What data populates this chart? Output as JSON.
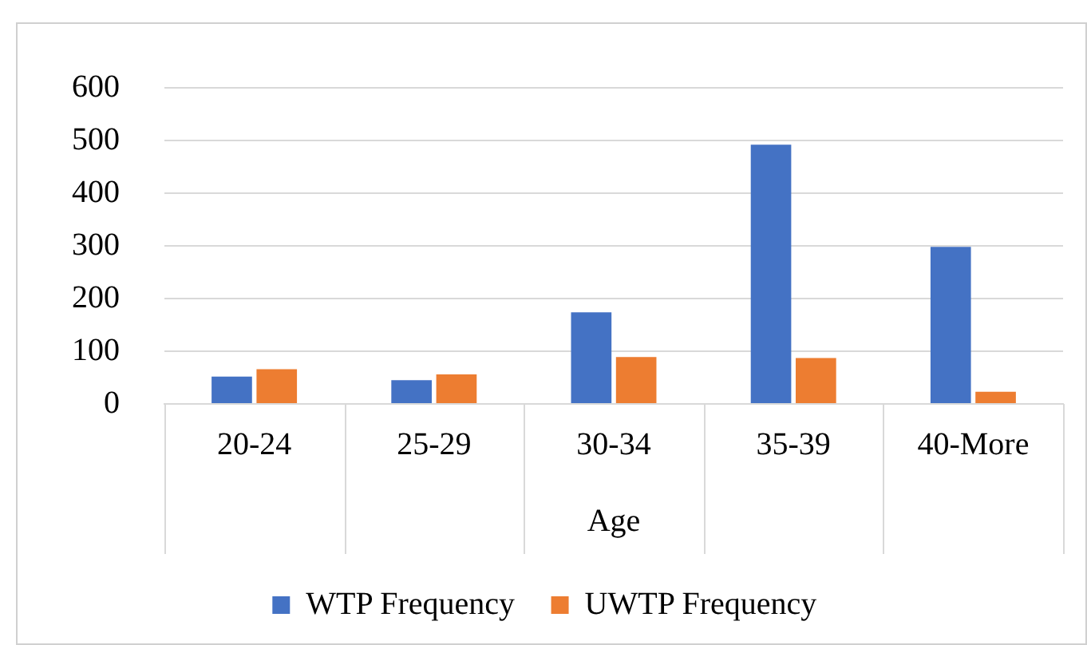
{
  "chart_data": {
    "type": "bar",
    "xlabel": "Age",
    "categories": [
      "20-24",
      "25-29",
      "30-34",
      "35-39",
      "40-More"
    ],
    "series": [
      {
        "name": "WTP Frequency",
        "color": "#4472c4",
        "values": [
          52,
          45,
          174,
          492,
          298
        ]
      },
      {
        "name": "UWTP Frequency",
        "color": "#ed7d31",
        "values": [
          66,
          56,
          89,
          87,
          23
        ]
      }
    ],
    "ylim": [
      0,
      600
    ],
    "yticks": [
      0,
      100,
      200,
      300,
      400,
      500,
      600
    ],
    "grid": "y",
    "legend": "bottom"
  }
}
